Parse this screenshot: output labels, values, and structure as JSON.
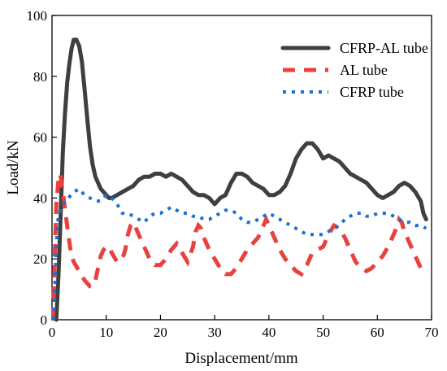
{
  "chart_data": {
    "type": "line",
    "xlabel": "Displacement/mm",
    "ylabel": "Load/kN",
    "xlim": [
      0,
      70
    ],
    "ylim": [
      0,
      100
    ],
    "xticks": [
      0,
      10,
      20,
      30,
      40,
      50,
      60,
      70
    ],
    "yticks": [
      0,
      20,
      40,
      60,
      80,
      100
    ],
    "grid": false,
    "legend_position": "top-right",
    "series": [
      {
        "name": "CFRP-AL tube",
        "color": "#3f3f3f",
        "style": "solid",
        "x": [
          0.8,
          1.2,
          1.6,
          2.0,
          2.4,
          2.8,
          3.2,
          3.6,
          4.0,
          4.5,
          5.0,
          5.5,
          6.0,
          6.5,
          7.0,
          7.5,
          8.0,
          8.5,
          9.0,
          9.5,
          10.0,
          10.5,
          11.0,
          12.0,
          13.0,
          14.0,
          15.0,
          16.0,
          17.0,
          18.0,
          19.0,
          20.0,
          21.0,
          22.0,
          23.0,
          24.0,
          25.0,
          26.0,
          27.0,
          28.0,
          29.0,
          30.0,
          31.0,
          32.0,
          33.0,
          34.0,
          35.0,
          36.0,
          37.0,
          38.0,
          39.0,
          40.0,
          41.0,
          42.0,
          43.0,
          44.0,
          45.0,
          46.0,
          47.0,
          48.0,
          49.0,
          50.0,
          51.0,
          52.0,
          53.0,
          54.0,
          55.0,
          56.0,
          57.0,
          58.0,
          59.0,
          60.0,
          61.0,
          62.0,
          63.0,
          64.0,
          65.0,
          66.0,
          67.0,
          68.0,
          68.5,
          69.0
        ],
        "y": [
          0,
          15,
          35,
          55,
          68,
          78,
          84,
          89,
          92,
          92,
          90,
          85,
          76,
          66,
          57,
          51,
          47,
          45,
          43,
          42,
          41,
          40,
          40,
          41,
          42,
          43,
          44,
          46,
          47,
          47,
          48,
          48,
          47,
          48,
          47,
          46,
          44,
          42,
          41,
          41,
          40,
          38,
          40,
          41,
          45,
          48,
          48,
          47,
          45,
          44,
          43,
          41,
          41,
          42,
          44,
          48,
          53,
          56,
          58,
          58,
          56,
          53,
          54,
          53,
          52,
          50,
          48,
          47,
          46,
          45,
          43,
          41,
          40,
          41,
          42,
          44,
          45,
          44,
          42,
          39,
          35,
          33
        ]
      },
      {
        "name": "AL tube",
        "color": "#e8413e",
        "style": "dashed",
        "x": [
          0.2,
          0.5,
          0.8,
          1.2,
          1.5,
          2.0,
          2.5,
          3.0,
          3.5,
          4.0,
          5.0,
          6.0,
          7.0,
          7.5,
          8.0,
          8.5,
          9.0,
          9.5,
          10.0,
          10.5,
          11.0,
          12.0,
          13.0,
          13.5,
          14.0,
          14.5,
          15.0,
          16.0,
          17.0,
          18.0,
          19.0,
          20.0,
          21.0,
          22.0,
          23.0,
          24.0,
          25.0,
          26.0,
          26.5,
          27.0,
          27.5,
          28.0,
          29.0,
          30.0,
          31.0,
          32.0,
          33.0,
          34.0,
          35.0,
          36.0,
          37.0,
          38.0,
          39.0,
          39.5,
          40.0,
          41.0,
          42.0,
          43.0,
          44.0,
          45.0,
          46.0,
          47.0,
          48.0,
          49.0,
          50.0,
          51.0,
          52.0,
          53.0,
          54.0,
          55.0,
          56.0,
          57.0,
          58.0,
          59.0,
          60.0,
          61.0,
          62.0,
          63.0,
          63.5,
          64.0,
          64.5,
          65.0,
          66.0,
          67.0,
          68.0,
          69.0
        ],
        "y": [
          0,
          20,
          38,
          46,
          48,
          42,
          35,
          28,
          22,
          19,
          16,
          13,
          11,
          11,
          13,
          17,
          21,
          23,
          24,
          24,
          22,
          19,
          20,
          23,
          28,
          31,
          32,
          28,
          24,
          20,
          18,
          18,
          20,
          23,
          25,
          22,
          19,
          24,
          29,
          31,
          30,
          27,
          23,
          20,
          17,
          15,
          15,
          17,
          20,
          23,
          25,
          27,
          31,
          33,
          31,
          27,
          23,
          20,
          18,
          16,
          15,
          18,
          22,
          23,
          24,
          28,
          31,
          30,
          27,
          23,
          19,
          17,
          16,
          17,
          19,
          21,
          24,
          28,
          30,
          33,
          32,
          29,
          25,
          21,
          17,
          15
        ]
      },
      {
        "name": "CFRP tube",
        "color": "#1f6fd6",
        "style": "dotted",
        "x": [
          0.3,
          0.7,
          1.0,
          1.5,
          2.0,
          3.0,
          4.0,
          5.0,
          6.0,
          7.0,
          8.0,
          9.0,
          10.0,
          11.0,
          12.0,
          13.0,
          14.0,
          15.0,
          16.0,
          17.0,
          18.0,
          19.0,
          20.0,
          21.0,
          22.0,
          23.0,
          24.0,
          25.0,
          26.0,
          27.0,
          28.0,
          29.0,
          30.0,
          31.0,
          32.0,
          33.0,
          34.0,
          35.0,
          36.0,
          37.0,
          38.0,
          39.0,
          40.0,
          41.0,
          42.0,
          43.0,
          44.0,
          45.0,
          46.0,
          47.0,
          48.0,
          49.0,
          50.0,
          51.0,
          52.0,
          53.0,
          54.0,
          55.0,
          56.0,
          57.0,
          58.0,
          59.0,
          60.0,
          61.0,
          62.0,
          63.0,
          64.0,
          65.0,
          66.0,
          67.0,
          68.0,
          69.0
        ],
        "y": [
          0,
          20,
          32,
          36,
          38,
          40,
          42,
          43,
          41,
          40,
          39,
          39,
          41,
          40,
          38,
          35,
          35,
          34,
          33,
          32,
          34,
          35,
          35,
          36,
          37,
          36,
          35,
          35,
          34,
          34,
          33,
          33,
          34,
          35,
          36,
          36,
          35,
          33,
          32,
          32,
          33,
          34,
          35,
          34,
          33,
          32,
          31,
          30,
          29,
          28,
          28,
          28,
          28,
          29,
          30,
          31,
          33,
          34,
          35,
          35,
          34,
          34,
          35,
          35,
          35,
          34,
          33,
          32,
          32,
          31,
          31,
          30
        ]
      }
    ]
  }
}
